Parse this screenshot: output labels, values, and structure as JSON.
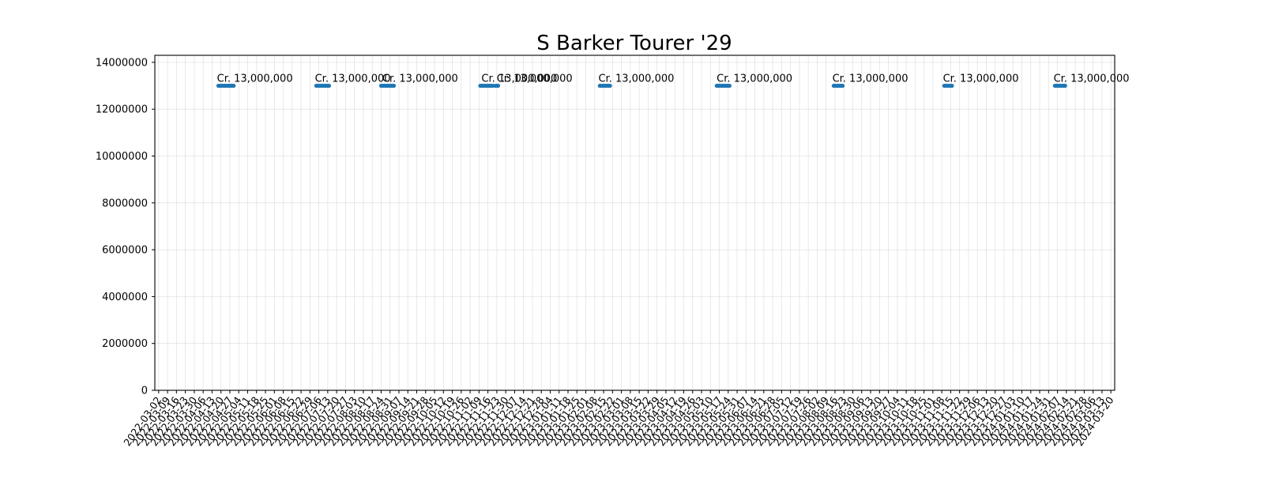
{
  "chart_data": {
    "type": "scatter",
    "title": "S Barker Tourer '29",
    "xlabel": "",
    "ylabel": "",
    "x_axis_type": "date",
    "xlim": [
      "2022-02-27",
      "2024-03-23"
    ],
    "ylim": [
      0,
      14300000
    ],
    "ytick_values": [
      0,
      2000000,
      4000000,
      6000000,
      8000000,
      10000000,
      12000000,
      14000000
    ],
    "ytick_labels": [
      "0",
      "2000000",
      "4000000",
      "6000000",
      "8000000",
      "10000000",
      "12000000",
      "14000000"
    ],
    "xtick_labels": [
      "2022-03-02",
      "2022-03-09",
      "2022-03-16",
      "2022-03-23",
      "2022-03-30",
      "2022-04-06",
      "2022-04-13",
      "2022-04-20",
      "2022-04-27",
      "2022-05-04",
      "2022-05-11",
      "2022-05-18",
      "2022-05-25",
      "2022-06-01",
      "2022-06-08",
      "2022-06-15",
      "2022-06-22",
      "2022-06-29",
      "2022-07-06",
      "2022-07-13",
      "2022-07-20",
      "2022-07-27",
      "2022-08-03",
      "2022-08-10",
      "2022-08-17",
      "2022-08-24",
      "2022-08-31",
      "2022-09-07",
      "2022-09-14",
      "2022-09-21",
      "2022-09-28",
      "2022-10-05",
      "2022-10-12",
      "2022-10-19",
      "2022-10-26",
      "2022-11-02",
      "2022-11-09",
      "2022-11-16",
      "2022-11-23",
      "2022-11-30",
      "2022-12-07",
      "2022-12-14",
      "2022-12-21",
      "2022-12-28",
      "2023-01-04",
      "2023-01-11",
      "2023-01-18",
      "2023-01-25",
      "2023-02-01",
      "2023-02-08",
      "2023-02-15",
      "2023-02-22",
      "2023-03-01",
      "2023-03-08",
      "2023-03-15",
      "2023-03-22",
      "2023-03-29",
      "2023-04-05",
      "2023-04-12",
      "2023-04-19",
      "2023-04-26",
      "2023-05-03",
      "2023-05-10",
      "2023-05-17",
      "2023-05-24",
      "2023-05-31",
      "2023-06-07",
      "2023-06-14",
      "2023-06-21",
      "2023-06-28",
      "2023-07-05",
      "2023-07-12",
      "2023-07-19",
      "2023-07-26",
      "2023-08-02",
      "2023-08-09",
      "2023-08-16",
      "2023-08-23",
      "2023-08-30",
      "2023-09-06",
      "2023-09-13",
      "2023-09-20",
      "2023-09-27",
      "2023-10-04",
      "2023-10-11",
      "2023-10-18",
      "2023-10-25",
      "2023-11-01",
      "2023-11-08",
      "2023-11-15",
      "2023-11-22",
      "2023-11-29",
      "2023-12-06",
      "2023-12-13",
      "2023-12-20",
      "2023-12-27",
      "2024-01-03",
      "2024-01-10",
      "2024-01-17",
      "2024-01-24",
      "2024-01-31",
      "2024-02-07",
      "2024-02-14",
      "2024-02-21",
      "2024-02-28",
      "2024-03-06",
      "2024-03-13",
      "2024-03-20"
    ],
    "grid": true,
    "legend": "none",
    "series": [
      {
        "color": "#1f77b4",
        "points": [
          {
            "x": "2022-04-18",
            "y": 13000000
          },
          {
            "x": "2022-04-19",
            "y": 13000000
          },
          {
            "x": "2022-04-20",
            "y": 13000000
          },
          {
            "x": "2022-04-21",
            "y": 13000000
          },
          {
            "x": "2022-04-22",
            "y": 13000000
          },
          {
            "x": "2022-04-23",
            "y": 13000000
          },
          {
            "x": "2022-04-24",
            "y": 13000000
          },
          {
            "x": "2022-04-25",
            "y": 13000000
          },
          {
            "x": "2022-04-26",
            "y": 13000000
          },
          {
            "x": "2022-04-27",
            "y": 13000000
          },
          {
            "x": "2022-04-28",
            "y": 13000000
          },
          {
            "x": "2022-04-29",
            "y": 13000000
          },
          {
            "x": "2022-04-30",
            "y": 13000000
          },
          {
            "x": "2022-07-04",
            "y": 13000000
          },
          {
            "x": "2022-07-05",
            "y": 13000000
          },
          {
            "x": "2022-07-06",
            "y": 13000000
          },
          {
            "x": "2022-07-07",
            "y": 13000000
          },
          {
            "x": "2022-07-08",
            "y": 13000000
          },
          {
            "x": "2022-07-09",
            "y": 13000000
          },
          {
            "x": "2022-07-10",
            "y": 13000000
          },
          {
            "x": "2022-07-11",
            "y": 13000000
          },
          {
            "x": "2022-07-12",
            "y": 13000000
          },
          {
            "x": "2022-07-13",
            "y": 13000000
          },
          {
            "x": "2022-07-14",
            "y": 13000000
          },
          {
            "x": "2022-08-24",
            "y": 13000000
          },
          {
            "x": "2022-08-25",
            "y": 13000000
          },
          {
            "x": "2022-08-26",
            "y": 13000000
          },
          {
            "x": "2022-08-27",
            "y": 13000000
          },
          {
            "x": "2022-08-28",
            "y": 13000000
          },
          {
            "x": "2022-08-29",
            "y": 13000000
          },
          {
            "x": "2022-08-30",
            "y": 13000000
          },
          {
            "x": "2022-08-31",
            "y": 13000000
          },
          {
            "x": "2022-09-01",
            "y": 13000000
          },
          {
            "x": "2022-09-02",
            "y": 13000000
          },
          {
            "x": "2022-09-03",
            "y": 13000000
          },
          {
            "x": "2022-11-10",
            "y": 13000000
          },
          {
            "x": "2022-11-11",
            "y": 13000000
          },
          {
            "x": "2022-11-12",
            "y": 13000000
          },
          {
            "x": "2022-11-13",
            "y": 13000000
          },
          {
            "x": "2022-11-14",
            "y": 13000000
          },
          {
            "x": "2022-11-15",
            "y": 13000000
          },
          {
            "x": "2022-11-16",
            "y": 13000000
          },
          {
            "x": "2022-11-17",
            "y": 13000000
          },
          {
            "x": "2022-11-18",
            "y": 13000000
          },
          {
            "x": "2022-11-19",
            "y": 13000000
          },
          {
            "x": "2022-11-20",
            "y": 13000000
          },
          {
            "x": "2022-11-22",
            "y": 13000000
          },
          {
            "x": "2022-11-23",
            "y": 13000000
          },
          {
            "x": "2022-11-24",
            "y": 13000000
          },
          {
            "x": "2023-02-12",
            "y": 13000000
          },
          {
            "x": "2023-02-13",
            "y": 13000000
          },
          {
            "x": "2023-02-14",
            "y": 13000000
          },
          {
            "x": "2023-02-15",
            "y": 13000000
          },
          {
            "x": "2023-02-16",
            "y": 13000000
          },
          {
            "x": "2023-02-17",
            "y": 13000000
          },
          {
            "x": "2023-02-18",
            "y": 13000000
          },
          {
            "x": "2023-02-19",
            "y": 13000000
          },
          {
            "x": "2023-02-20",
            "y": 13000000
          },
          {
            "x": "2023-05-15",
            "y": 13000000
          },
          {
            "x": "2023-05-16",
            "y": 13000000
          },
          {
            "x": "2023-05-17",
            "y": 13000000
          },
          {
            "x": "2023-05-18",
            "y": 13000000
          },
          {
            "x": "2023-05-19",
            "y": 13000000
          },
          {
            "x": "2023-05-20",
            "y": 13000000
          },
          {
            "x": "2023-05-21",
            "y": 13000000
          },
          {
            "x": "2023-05-22",
            "y": 13000000
          },
          {
            "x": "2023-05-23",
            "y": 13000000
          },
          {
            "x": "2023-05-24",
            "y": 13000000
          },
          {
            "x": "2023-05-25",
            "y": 13000000
          },
          {
            "x": "2023-08-15",
            "y": 13000000
          },
          {
            "x": "2023-08-16",
            "y": 13000000
          },
          {
            "x": "2023-08-17",
            "y": 13000000
          },
          {
            "x": "2023-08-18",
            "y": 13000000
          },
          {
            "x": "2023-08-19",
            "y": 13000000
          },
          {
            "x": "2023-08-20",
            "y": 13000000
          },
          {
            "x": "2023-08-21",
            "y": 13000000
          },
          {
            "x": "2023-08-22",
            "y": 13000000
          },
          {
            "x": "2023-11-10",
            "y": 13000000
          },
          {
            "x": "2023-11-11",
            "y": 13000000
          },
          {
            "x": "2023-11-12",
            "y": 13000000
          },
          {
            "x": "2023-11-13",
            "y": 13000000
          },
          {
            "x": "2023-11-14",
            "y": 13000000
          },
          {
            "x": "2023-11-15",
            "y": 13000000
          },
          {
            "x": "2023-11-16",
            "y": 13000000
          },
          {
            "x": "2024-02-05",
            "y": 13000000
          },
          {
            "x": "2024-02-06",
            "y": 13000000
          },
          {
            "x": "2024-02-07",
            "y": 13000000
          },
          {
            "x": "2024-02-08",
            "y": 13000000
          },
          {
            "x": "2024-02-09",
            "y": 13000000
          },
          {
            "x": "2024-02-10",
            "y": 13000000
          },
          {
            "x": "2024-02-11",
            "y": 13000000
          },
          {
            "x": "2024-02-12",
            "y": 13000000
          },
          {
            "x": "2024-02-13",
            "y": 13000000
          }
        ]
      }
    ],
    "annotations": [
      {
        "x": "2022-04-20",
        "y": 13000000,
        "text": "Cr. 13,000,000"
      },
      {
        "x": "2022-07-06",
        "y": 13000000,
        "text": "Cr. 13,000,000"
      },
      {
        "x": "2022-08-28",
        "y": 13000000,
        "text": "Cr. 13,000,000"
      },
      {
        "x": "2022-11-14",
        "y": 13000000,
        "text": "Cr. 13,000,000"
      },
      {
        "x": "2022-11-26",
        "y": 13000000,
        "text": "Cr. 13,000,000"
      },
      {
        "x": "2023-02-14",
        "y": 13000000,
        "text": "Cr. 13,000,000"
      },
      {
        "x": "2023-05-18",
        "y": 13000000,
        "text": "Cr. 13,000,000"
      },
      {
        "x": "2023-08-17",
        "y": 13000000,
        "text": "Cr. 13,000,000"
      },
      {
        "x": "2023-11-12",
        "y": 13000000,
        "text": "Cr. 13,000,000"
      },
      {
        "x": "2024-02-07",
        "y": 13000000,
        "text": "Cr. 13,000,000"
      }
    ]
  }
}
